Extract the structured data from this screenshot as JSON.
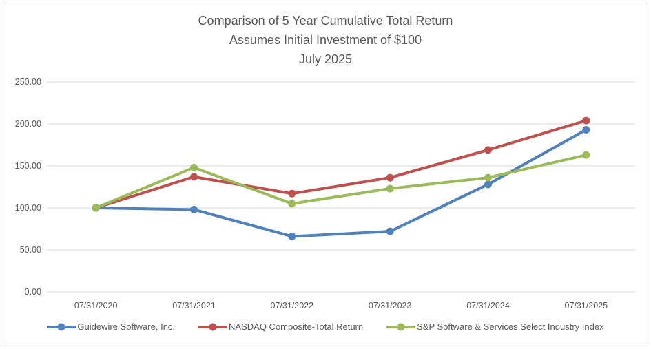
{
  "window": {
    "background_color": "#ffffff",
    "frame_border_color": "#d9d9d9"
  },
  "chart_data": {
    "type": "line",
    "title_lines": [
      "Comparison of 5 Year Cumulative Total Return",
      "Assumes Initial Investment of $100",
      "July 2025"
    ],
    "categories": [
      "07/31/2020",
      "07/31/2021",
      "07/31/2022",
      "07/31/2023",
      "07/31/2024",
      "07/31/2025"
    ],
    "series": [
      {
        "name": "Guidewire Software, Inc.",
        "color": "#4F81BD",
        "values": [
          100,
          98,
          66,
          72,
          128,
          193
        ]
      },
      {
        "name": "NASDAQ Composite-Total Return",
        "color": "#C0504D",
        "values": [
          100,
          137,
          117,
          136,
          169,
          204
        ]
      },
      {
        "name": "S&P Software & Services Select Industry Index",
        "color": "#9BBB59",
        "values": [
          100,
          148,
          105,
          123,
          136,
          163
        ]
      }
    ],
    "ytick_labels": [
      "250.00",
      "200.00",
      "150.00",
      "100.00",
      "50.00",
      "0.00"
    ],
    "ytick_values": [
      250,
      200,
      150,
      100,
      50,
      0
    ],
    "ylim": [
      0,
      250
    ],
    "xlabel": "",
    "ylabel": "",
    "grid": true,
    "gridline_color": "#d9d9d9",
    "text_color": "#595959",
    "legend_position": "bottom",
    "marker": "circle",
    "line_width": 4
  }
}
